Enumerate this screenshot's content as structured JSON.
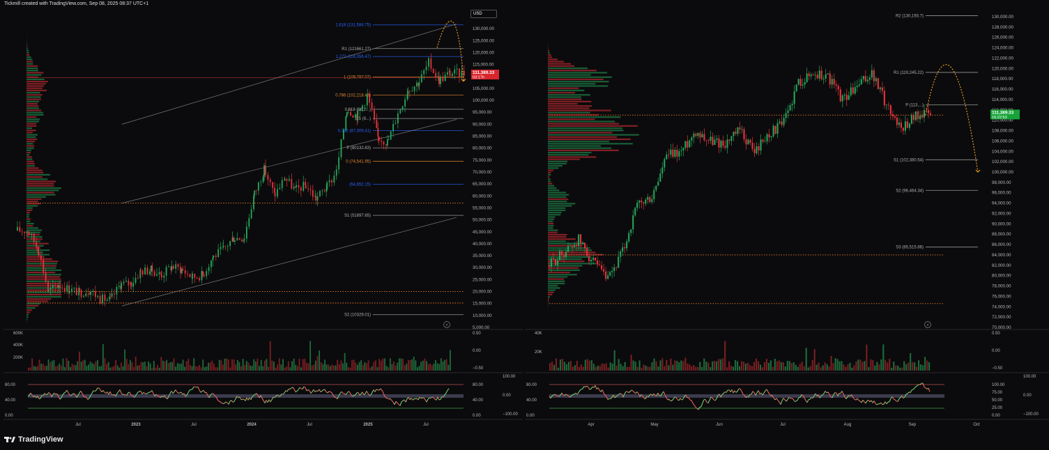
{
  "header": {
    "title": "Tickmill created with TradingView.com, Sep 08, 2025 08:37 UTC+1"
  },
  "footer": {
    "brand": "TradingView"
  },
  "currency_label": "USD",
  "colors": {
    "up": "#26a65b",
    "down": "#e8333b",
    "projection": "#f5a623",
    "pivot_gray": "#b0b0b0",
    "fib_blue": "#2962ff",
    "fib_orange": "#e0892f"
  },
  "chart_data": [
    {
      "type": "line",
      "title": "",
      "description": "Weekly candlestick chart, linear price axis",
      "ylim": [
        5000,
        135000
      ],
      "y_ticks": [
        "130,000.00",
        "125,000.00",
        "120,000.00",
        "115,000.00",
        "110,000.00",
        "105,000.00",
        "100,000.00",
        "95,000.00",
        "90,000.00",
        "85,000.00",
        "80,000.00",
        "75,000.00",
        "70,000.00",
        "65,000.00",
        "60,000.00",
        "55,000.00",
        "50,000.00",
        "45,000.00",
        "40,000.00",
        "35,000.00",
        "30,000.00",
        "25,000.00",
        "20,000.00",
        "15,000.00",
        "10,000.00",
        "5,000.00"
      ],
      "x_ticks": [
        "Jul",
        "2023",
        "Jul",
        "2024",
        "Jul",
        "2025",
        "Jul"
      ],
      "price_series": {
        "name": "",
        "x": [
          "2022-04",
          "2022-05",
          "2022-06",
          "2022-07",
          "2022-08",
          "2022-09",
          "2022-10",
          "2022-11",
          "2022-12",
          "2023-01",
          "2023-02",
          "2023-03",
          "2023-04",
          "2023-05",
          "2023-06",
          "2023-07",
          "2023-08",
          "2023-09",
          "2023-10",
          "2023-11",
          "2023-12",
          "2024-01",
          "2024-02",
          "2024-03",
          "2024-04",
          "2024-05",
          "2024-06",
          "2024-07",
          "2024-08",
          "2024-09",
          "2024-10",
          "2024-11",
          "2024-12",
          "2025-01",
          "2025-02",
          "2025-03",
          "2025-04",
          "2025-05",
          "2025-06",
          "2025-07",
          "2025-08",
          "2025-09"
        ],
        "values": [
          45500,
          38000,
          20000,
          23000,
          21000,
          19500,
          20500,
          17000,
          16500,
          23000,
          23500,
          28500,
          29000,
          27000,
          30500,
          29200,
          26000,
          27000,
          34500,
          37700,
          42500,
          42500,
          61000,
          71000,
          60500,
          67500,
          62500,
          64500,
          59000,
          63500,
          70000,
          96500,
          93500,
          102000,
          84500,
          82500,
          94500,
          104500,
          107500,
          115700,
          108500,
          111389
        ]
      },
      "current_price": {
        "value": "111,389.33",
        "countdown": "03:17h"
      },
      "levels": [
        {
          "label": "1.618 (131,584.75)",
          "value": 131584.75,
          "color": "fib_blue"
        },
        {
          "label": "R1 (121661.27)",
          "value": 121661.27,
          "color": "pivot_gray"
        },
        {
          "label": "1.272 (118,356.47)",
          "value": 118356.47,
          "color": "fib_blue"
        },
        {
          "label": "1 (109,797.07)",
          "value": 109797.07,
          "color": "fib_orange"
        },
        {
          "label": "0.786 (102,218.48)",
          "value": 102218.48,
          "color": "fib_orange"
        },
        {
          "label": "0.618 (96,2...)",
          "value": 96270,
          "color": "pivot_gray"
        },
        {
          "label": "0.5 (9...)",
          "value": 92400,
          "color": "pivot_gray"
        },
        {
          "label": "0.382 (87,309.41)",
          "value": 87309.41,
          "color": "fib_blue"
        },
        {
          "label": "P (80132.63)",
          "value": 80132.63,
          "color": "pivot_gray"
        },
        {
          "label": "0 (74,541.95)",
          "value": 74541.95,
          "color": "fib_orange"
        },
        {
          "label": "(64,852.15)",
          "value": 64852.15,
          "color": "fib_blue"
        },
        {
          "label": "S1 (51897.65)",
          "value": 51897.65,
          "color": "pivot_gray"
        },
        {
          "label": "S2 (10329.01)",
          "value": 10329.01,
          "color": "pivot_gray"
        }
      ],
      "volume_panel": {
        "y_ticks": [
          "600K",
          "400K",
          "200K"
        ],
        "right_ticks": [
          "0.50",
          "0.00",
          "−0.50"
        ]
      },
      "oscillator_panel": {
        "left_ticks": [
          "80.00",
          "40.00",
          "0.00"
        ],
        "right_ticks_a": [
          "80.00",
          "40.00",
          "0.00"
        ],
        "right_ticks_b": [
          "100.00",
          "0.00",
          "−100.00"
        ]
      }
    },
    {
      "type": "line",
      "title": "",
      "description": "Daily candlestick chart, linear price axis",
      "ylim": [
        70000,
        130000
      ],
      "y_ticks": [
        "130,000.00",
        "128,000.00",
        "126,000.00",
        "124,000.00",
        "122,000.00",
        "120,000.00",
        "118,000.00",
        "116,000.00",
        "114,000.00",
        "112,000.00",
        "110,000.00",
        "108,000.00",
        "106,000.00",
        "104,000.00",
        "102,000.00",
        "100,000.00",
        "98,000.00",
        "96,000.00",
        "94,000.00",
        "92,000.00",
        "90,000.00",
        "88,000.00",
        "86,000.00",
        "84,000.00",
        "82,000.00",
        "80,000.00",
        "78,000.00",
        "76,000.00",
        "74,000.00",
        "72,000.00",
        "70,000.00"
      ],
      "x_ticks": [
        "Apr",
        "May",
        "Jun",
        "Jul",
        "Aug",
        "Sep",
        "Oct"
      ],
      "price_series": {
        "name": "",
        "x": [
          "2025-03-10",
          "2025-03-17",
          "2025-03-24",
          "2025-03-31",
          "2025-04-07",
          "2025-04-14",
          "2025-04-21",
          "2025-04-28",
          "2025-05-05",
          "2025-05-12",
          "2025-05-19",
          "2025-05-26",
          "2025-06-02",
          "2025-06-09",
          "2025-06-16",
          "2025-06-23",
          "2025-06-30",
          "2025-07-07",
          "2025-07-14",
          "2025-07-21",
          "2025-07-28",
          "2025-08-04",
          "2025-08-11",
          "2025-08-18",
          "2025-08-25",
          "2025-09-01",
          "2025-09-08"
        ],
        "values": [
          82000,
          84500,
          87000,
          82500,
          79000,
          84500,
          93500,
          95000,
          103000,
          104000,
          108000,
          106000,
          105500,
          108000,
          104000,
          107500,
          109500,
          117500,
          119000,
          118500,
          114000,
          116500,
          119000,
          113000,
          108500,
          111000,
          111389
        ]
      },
      "current_price": {
        "value": "111,389.33",
        "countdown": "16:22:53"
      },
      "levels": [
        {
          "label": "R2 (130,193.7)",
          "value": 130193.7,
          "color": "pivot_gray"
        },
        {
          "label": "R1 (119,245.22)",
          "value": 119245.22,
          "color": "pivot_gray"
        },
        {
          "label": "P (113,...)",
          "value": 113000,
          "color": "pivot_gray"
        },
        {
          "label": "S1 (102,380.54)",
          "value": 102380.54,
          "color": "pivot_gray"
        },
        {
          "label": "S2 (96,464.34)",
          "value": 96464.34,
          "color": "pivot_gray"
        },
        {
          "label": "S3 (85,515.86)",
          "value": 85515.86,
          "color": "pivot_gray"
        }
      ],
      "volume_panel": {
        "y_ticks": [
          "40K",
          "20K"
        ],
        "right_ticks": [
          "0.50",
          "0.00",
          "−0.50"
        ]
      },
      "oscillator_panel": {
        "left_ticks": [
          "80.00",
          "40.00",
          "0.00"
        ],
        "right_ticks_a": [
          "100.00",
          "75.00",
          "50.00",
          "25.00",
          "0.00"
        ],
        "right_ticks_b": [
          "100.00",
          "0.00",
          "−100.00"
        ]
      }
    }
  ]
}
